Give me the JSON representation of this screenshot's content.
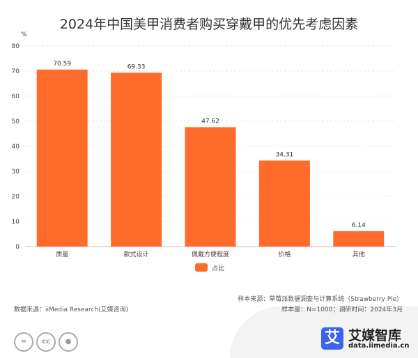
{
  "title": "2024年中国美甲消费者购买穿戴甲的优先考虑因素",
  "chart_data": {
    "type": "bar",
    "title": "2024年中国美甲消费者购买穿戴甲的优先考虑因素",
    "ylabel": "%",
    "categories": [
      "质量",
      "款式设计",
      "佩戴方便程度",
      "价格",
      "其他"
    ],
    "values": [
      70.59,
      69.33,
      47.62,
      34.31,
      6.14
    ],
    "value_labels": [
      "70.59",
      "69.33",
      "47.62",
      "34.31",
      "6.14"
    ],
    "ylim": [
      0,
      80
    ],
    "yticks": [
      "0",
      "10",
      "20",
      "30",
      "40",
      "50",
      "60",
      "70",
      "80"
    ],
    "legend": {
      "label": "占比",
      "placement": "bottom"
    },
    "grid": true,
    "color": "#ff6b2b"
  },
  "notes": {
    "sample_source": "样本来源：草莓派数据调查与计算系统（Strawberry Pie）",
    "data_source": "数据来源：iiMedia Research(艾媒咨询)",
    "sample_size": "样本量：N=1000；调研时间：2024年3月"
  },
  "brand": {
    "icon_char": "艾",
    "name": "艾媒智库",
    "url": "data.iimedia.cn"
  },
  "license": {
    "cc": "cc",
    "nd": "="
  }
}
